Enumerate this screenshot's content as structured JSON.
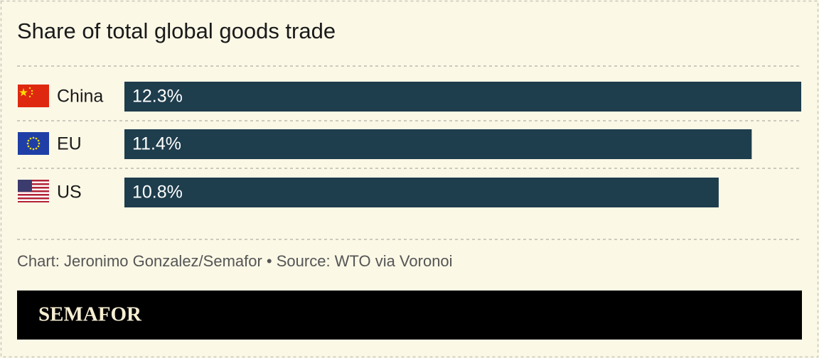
{
  "chart_data": {
    "type": "bar",
    "orientation": "horizontal",
    "title": "Share of total global goods trade",
    "categories": [
      "China",
      "EU",
      "US"
    ],
    "values": [
      12.3,
      11.4,
      10.8
    ],
    "value_labels": [
      "12.3%",
      "11.4%",
      "10.8%"
    ],
    "color": "#1e3d4d",
    "source": "Chart: Jeronimo Gonzalez/Semafor • Source: WTO via Voronoi",
    "brand": "SEMAFOR"
  }
}
